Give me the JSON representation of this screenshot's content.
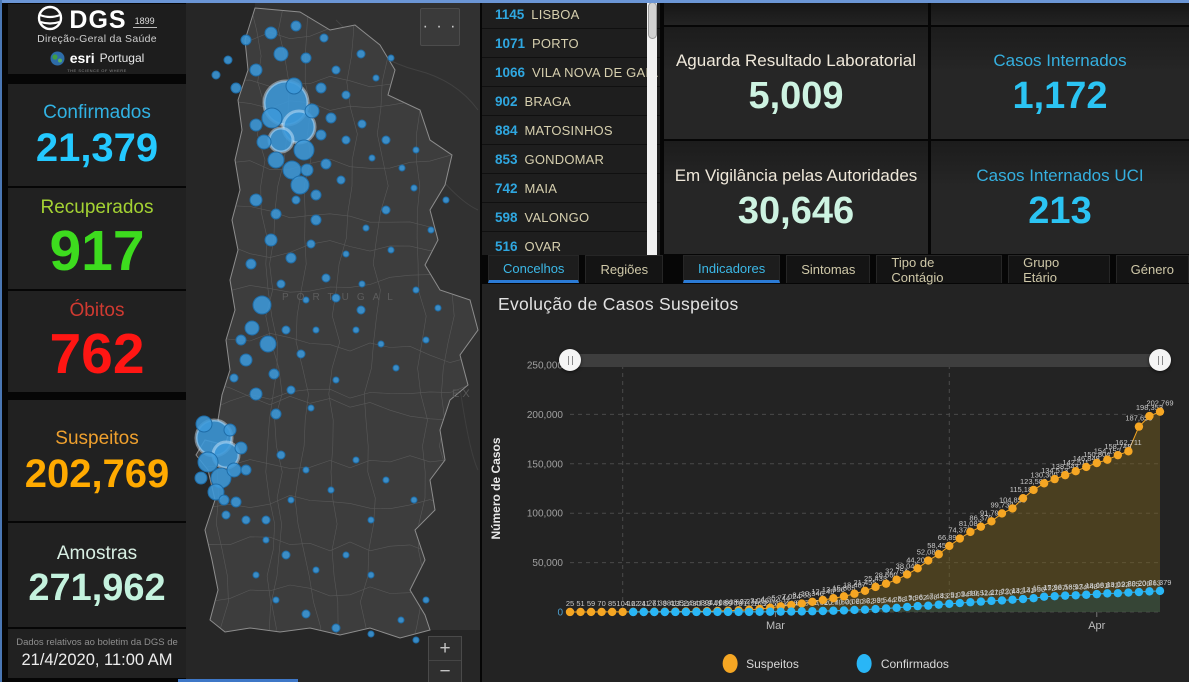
{
  "header": {
    "org": "DGS",
    "org_year": "1899",
    "org_subtitle": "Direção-Geral da Saúde",
    "partner": "esri",
    "partner_region": "Portugal",
    "partner_tagline": "THE SCIENCE OF WHERE"
  },
  "stats": [
    {
      "id": "confirmados",
      "label": "Confirmados",
      "value": "21,379",
      "label_color": "#31b2e3",
      "value_color": "#24c9ff"
    },
    {
      "id": "recuperados",
      "label": "Recuperados",
      "value": "917",
      "label_color": "#a4d233",
      "value_color": "#3ddc1e"
    },
    {
      "id": "obitos",
      "label": "Óbitos",
      "value": "762",
      "label_color": "#d03a31",
      "value_color": "#ff1613"
    },
    {
      "id": "suspeitos",
      "label": "Suspeitos",
      "value": "202,769",
      "label_color": "#efa02e",
      "value_color": "#ffaa00"
    },
    {
      "id": "amostras",
      "label": "Amostras",
      "value": "271,962",
      "label_color": "#d8efe3",
      "value_color": "#c4f2de"
    }
  ],
  "footer_note": {
    "line1": "Dados relativos ao boletim da DGS de",
    "line2": "21/4/2020, 11:00 AM"
  },
  "map": {
    "country_label": "PORTUGAL",
    "edge_label": "EX",
    "more_icon": "· · ·",
    "zoom_in": "+",
    "zoom_out": "−",
    "bubble_color": "#3c99d9",
    "bubbles": [
      [
        60,
        40,
        5
      ],
      [
        85,
        33,
        6
      ],
      [
        110,
        26,
        5
      ],
      [
        138,
        38,
        4
      ],
      [
        95,
        54,
        7
      ],
      [
        70,
        70,
        6
      ],
      [
        120,
        58,
        5
      ],
      [
        150,
        70,
        4
      ],
      [
        175,
        54,
        4
      ],
      [
        50,
        88,
        5
      ],
      [
        135,
        88,
        5
      ],
      [
        160,
        95,
        4
      ],
      [
        190,
        78,
        3
      ],
      [
        205,
        58,
        3
      ],
      [
        42,
        60,
        4
      ],
      [
        30,
        75,
        4
      ],
      [
        100,
        103,
        22
      ],
      [
        113,
        127,
        16
      ],
      [
        95,
        140,
        12
      ],
      [
        118,
        150,
        10
      ],
      [
        86,
        118,
        10
      ],
      [
        108,
        86,
        8
      ],
      [
        126,
        111,
        7
      ],
      [
        90,
        160,
        8
      ],
      [
        106,
        170,
        9
      ],
      [
        78,
        142,
        7
      ],
      [
        121,
        170,
        6
      ],
      [
        70,
        125,
        6
      ],
      [
        135,
        135,
        5
      ],
      [
        145,
        118,
        5
      ],
      [
        160,
        140,
        4
      ],
      [
        176,
        124,
        4
      ],
      [
        140,
        164,
        5
      ],
      [
        155,
        180,
        4
      ],
      [
        186,
        158,
        3
      ],
      [
        200,
        140,
        4
      ],
      [
        216,
        168,
        3
      ],
      [
        230,
        150,
        3
      ],
      [
        114,
        185,
        9
      ],
      [
        130,
        195,
        5
      ],
      [
        70,
        200,
        6
      ],
      [
        90,
        214,
        5
      ],
      [
        110,
        200,
        4
      ],
      [
        130,
        220,
        5
      ],
      [
        85,
        240,
        6
      ],
      [
        105,
        258,
        5
      ],
      [
        125,
        244,
        4
      ],
      [
        65,
        264,
        5
      ],
      [
        95,
        284,
        4
      ],
      [
        140,
        278,
        4
      ],
      [
        160,
        254,
        3
      ],
      [
        180,
        228,
        3
      ],
      [
        176,
        284,
        3
      ],
      [
        200,
        210,
        4
      ],
      [
        228,
        188,
        3
      ],
      [
        150,
        298,
        4
      ],
      [
        120,
        300,
        3
      ],
      [
        205,
        250,
        3
      ],
      [
        245,
        230,
        3
      ],
      [
        230,
        290,
        3
      ],
      [
        252,
        308,
        3
      ],
      [
        240,
        340,
        3
      ],
      [
        260,
        200,
        3
      ],
      [
        175,
        310,
        4
      ],
      [
        76,
        305,
        9
      ],
      [
        66,
        328,
        7
      ],
      [
        82,
        344,
        8
      ],
      [
        60,
        360,
        6
      ],
      [
        88,
        374,
        5
      ],
      [
        70,
        394,
        6
      ],
      [
        100,
        330,
        4
      ],
      [
        115,
        354,
        4
      ],
      [
        130,
        330,
        3
      ],
      [
        105,
        390,
        4
      ],
      [
        125,
        408,
        3
      ],
      [
        90,
        414,
        5
      ],
      [
        170,
        330,
        3
      ],
      [
        195,
        344,
        3
      ],
      [
        210,
        368,
        3
      ],
      [
        150,
        380,
        3
      ],
      [
        55,
        340,
        5
      ],
      [
        48,
        378,
        4
      ],
      [
        28,
        438,
        18
      ],
      [
        40,
        455,
        13
      ],
      [
        22,
        462,
        10
      ],
      [
        35,
        478,
        10
      ],
      [
        18,
        424,
        8
      ],
      [
        48,
        470,
        7
      ],
      [
        30,
        492,
        8
      ],
      [
        44,
        430,
        6
      ],
      [
        15,
        478,
        6
      ],
      [
        38,
        500,
        5
      ],
      [
        55,
        448,
        6
      ],
      [
        60,
        470,
        5
      ],
      [
        120,
        470,
        3
      ],
      [
        145,
        490,
        3
      ],
      [
        170,
        460,
        3
      ],
      [
        200,
        480,
        3
      ],
      [
        228,
        500,
        3
      ],
      [
        95,
        455,
        4
      ],
      [
        105,
        500,
        3
      ],
      [
        80,
        520,
        4
      ],
      [
        185,
        520,
        3
      ],
      [
        60,
        520,
        4
      ],
      [
        80,
        540,
        3
      ],
      [
        100,
        555,
        4
      ],
      [
        70,
        575,
        3
      ],
      [
        130,
        570,
        3
      ],
      [
        160,
        555,
        3
      ],
      [
        185,
        575,
        3
      ],
      [
        90,
        600,
        3
      ],
      [
        120,
        614,
        4
      ],
      [
        150,
        628,
        4
      ],
      [
        185,
        634,
        3
      ],
      [
        215,
        620,
        3
      ],
      [
        240,
        600,
        3
      ],
      [
        50,
        502,
        5
      ],
      [
        40,
        515,
        4
      ],
      [
        230,
        640,
        3
      ]
    ]
  },
  "concelhos": {
    "rows": [
      {
        "value": "1145",
        "name": "LISBOA"
      },
      {
        "value": "1071",
        "name": "PORTO"
      },
      {
        "value": "1066",
        "name": "VILA NOVA DE GAIA"
      },
      {
        "value": "902",
        "name": "BRAGA"
      },
      {
        "value": "884",
        "name": "MATOSINHOS"
      },
      {
        "value": "853",
        "name": "GONDOMAR"
      },
      {
        "value": "742",
        "name": "MAIA"
      },
      {
        "value": "598",
        "name": "VALONGO"
      },
      {
        "value": "516",
        "name": "OVAR"
      }
    ],
    "tabs": [
      {
        "label": "Concelhos",
        "active": true
      },
      {
        "label": "Regiões",
        "active": false
      }
    ]
  },
  "indicators": [
    {
      "label": "Aguarda Resultado Laboratorial",
      "value": "5,009",
      "label_color": "#efe8da",
      "value_color": "#cdf3e1"
    },
    {
      "label": "Casos Internados",
      "value": "1,172",
      "label_color": "#35b0e0",
      "value_color": "#2bc4f3"
    },
    {
      "label": "Em Vigilância pelas Autoridades",
      "value": "30,646",
      "label_color": "#efe8da",
      "value_color": "#cdf3e1"
    },
    {
      "label": "Casos Internados UCI",
      "value": "213",
      "label_color": "#35b0e0",
      "value_color": "#2bc4f3"
    }
  ],
  "right_tabs": [
    {
      "label": "Indicadores",
      "active": true
    },
    {
      "label": "Sintomas",
      "active": false
    },
    {
      "label": "Tipo de Contágio",
      "active": false
    },
    {
      "label": "Grupo Etário",
      "active": false
    },
    {
      "label": "Género",
      "active": false
    }
  ],
  "chart_data": {
    "type": "line",
    "title": "Evolução de Casos Suspeitos",
    "ylabel": "Número de Casos",
    "ylim": [
      0,
      250000
    ],
    "yticks": [
      "0",
      "50,000",
      "100,000",
      "150,000",
      "200,000",
      "250,000"
    ],
    "xticks": [
      "Mar",
      "Apr"
    ],
    "xtick_indices": [
      19.5,
      50
    ],
    "month_boundary_indices": [
      5,
      36
    ],
    "grid": true,
    "legend_position": "bottom",
    "legend": [
      {
        "name": "Suspeitos",
        "color": "#f5a623"
      },
      {
        "name": "Confirmados",
        "color": "#29b6f6"
      }
    ],
    "series": [
      {
        "name": "Suspeitos",
        "color": "#f5a623",
        "area_color": "#7a611c",
        "values": [
          25,
          51,
          59,
          70,
          85,
          104,
          162,
          211,
          271,
          338,
          411,
          524,
          641,
          804,
          1008,
          1308,
          1697,
          2271,
          3066,
          4302,
          5744,
          7024,
          8533,
          10346,
          12145,
          13956,
          15865,
          18487,
          21455,
          25433,
          28660,
          32754,
          38042,
          44204,
          52086,
          58457,
          66895,
          74375,
          81087,
          86370,
          91794,
          99730,
          104855,
          115183,
          123580,
          130300,
          134513,
          138543,
          142511,
          146848,
          150804,
          154152,
          158748,
          162711,
          187655,
          198353,
          202769
        ]
      },
      {
        "name": "Confirmados",
        "color": "#29b6f6",
        "area_color": "#1e4e52",
        "values": [
          null,
          null,
          null,
          null,
          null,
          null,
          2,
          4,
          6,
          9,
          13,
          21,
          30,
          39,
          41,
          59,
          78,
          112,
          169,
          245,
          331,
          448,
          642,
          785,
          1020,
          1280,
          1600,
          2060,
          2362,
          2995,
          3544,
          4268,
          5170,
          5962,
          6408,
          7443,
          8251,
          9034,
          9886,
          10524,
          11278,
          11730,
          12442,
          13141,
          13956,
          15472,
          15987,
          16585,
          16934,
          17448,
          18091,
          18841,
          19022,
          19685,
          20206,
          20863,
          21379
        ]
      }
    ]
  }
}
